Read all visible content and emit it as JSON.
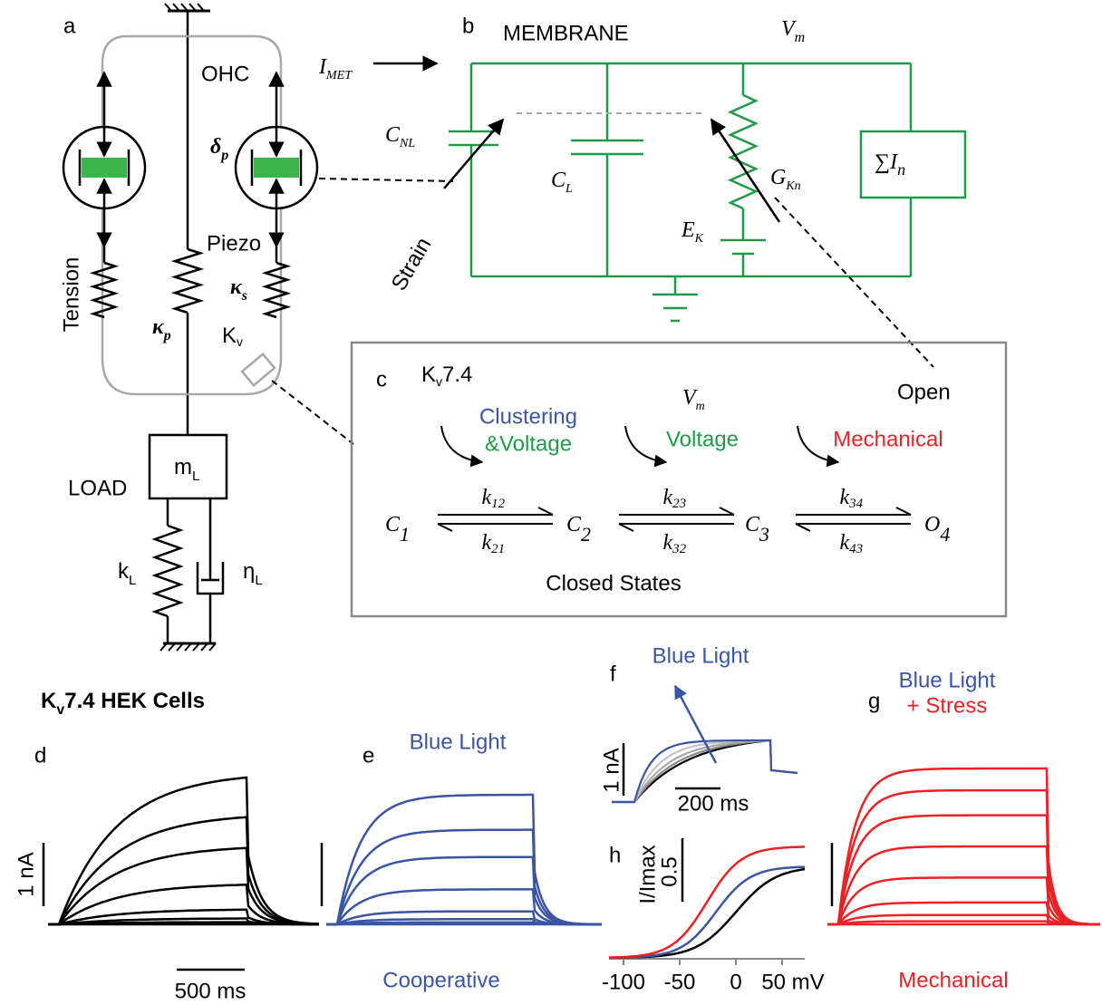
{
  "panel_labels": [
    "a",
    "b",
    "c",
    "d",
    "e",
    "f",
    "g",
    "h"
  ],
  "a": {
    "ohc": "OHC",
    "piezo": "Piezo",
    "tension": "Tension",
    "load": "LOAD",
    "mass": {
      "main": "m",
      "sub": "L"
    },
    "spring": {
      "main": "k",
      "sub": "L"
    },
    "damper": {
      "main": "η",
      "sub": "L"
    },
    "channel": {
      "main": "K",
      "sub": "v"
    },
    "kappa_p": {
      "main": "κ",
      "sub": "p"
    },
    "kappa_s": {
      "main": "κ",
      "sub": "s"
    },
    "delta_p": {
      "main": "δ",
      "sub": "p"
    }
  },
  "b": {
    "membrane": "MEMBRANE",
    "vm": {
      "main": "V",
      "sub": "m"
    },
    "imet": {
      "main": "I",
      "sub": "MET"
    },
    "cnl": {
      "main": "C",
      "sub": "NL"
    },
    "cl": {
      "main": "C",
      "sub": "L"
    },
    "gkn": {
      "main": "G",
      "sub": "Kn"
    },
    "ek": {
      "main": "E",
      "sub": "K"
    },
    "sum": {
      "main": "∑I",
      "sub": "n"
    },
    "strain": "Strain",
    "open": "Open"
  },
  "c": {
    "title": {
      "main": "K",
      "sub": "v",
      "tail": "7.4"
    },
    "clustering": "Clustering",
    "and_voltage": "&Voltage",
    "vm": {
      "main": "V",
      "sub": "m"
    },
    "voltage": "Voltage",
    "mechanical": "Mechanical",
    "states": [
      {
        "main": "C",
        "sub": "1"
      },
      {
        "main": "C",
        "sub": "2"
      },
      {
        "main": "C",
        "sub": "3"
      },
      {
        "main": "O",
        "sub": "4"
      }
    ],
    "forward": [
      {
        "main": "k",
        "sub": "12"
      },
      {
        "main": "k",
        "sub": "23"
      },
      {
        "main": "k",
        "sub": "34"
      }
    ],
    "backward": [
      {
        "main": "k",
        "sub": "21"
      },
      {
        "main": "k",
        "sub": "32"
      },
      {
        "main": "k",
        "sub": "43"
      }
    ],
    "closed": "Closed States"
  },
  "d": {
    "title": {
      "main": "K",
      "sub": "v",
      "tail": "7.4 HEK Cells"
    },
    "scale_y": "1 nA",
    "scale_x": "500 ms"
  },
  "e": {
    "top": "Blue Light",
    "bottom": "Cooperative"
  },
  "f": {
    "top": "Blue Light",
    "scale_y": "1 nA",
    "scale_x": "200 ms"
  },
  "g": {
    "top": "Blue Light",
    "top2": "+ Stress",
    "bottom": "Mechanical"
  },
  "h": {
    "ylabel": "I/Imax",
    "scale_y": "0.5",
    "xticks": [
      "-100",
      "-50",
      "0",
      "50 mV"
    ]
  }
}
